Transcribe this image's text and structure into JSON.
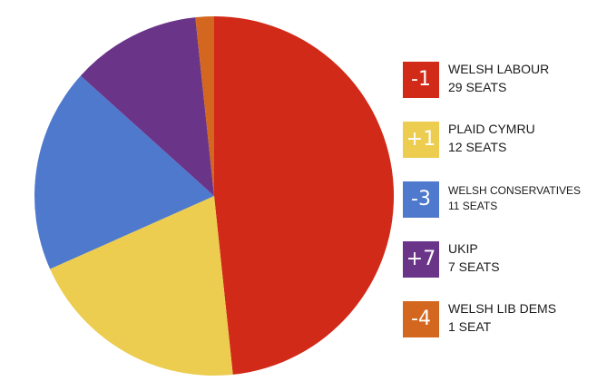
{
  "chart_data": {
    "type": "pie",
    "slices": [
      {
        "label": "WELSH LABOUR",
        "value": 29,
        "seats_text": "29 SEATS",
        "change": "-1",
        "color": "#d12a18"
      },
      {
        "label": "PLAID CYMRU",
        "value": 12,
        "seats_text": "12 SEATS",
        "change": "+1",
        "color": "#eccd4f"
      },
      {
        "label": "WELSH CONSERVATIVES",
        "value": 11,
        "seats_text": "11 SEATS",
        "change": "-3",
        "color": "#4f79cc"
      },
      {
        "label": "UKIP",
        "value": 7,
        "seats_text": "7 SEATS",
        "change": "+7",
        "color": "#6a3489"
      },
      {
        "label": "WELSH LIB DEMS",
        "value": 1,
        "seats_text": "1 SEAT",
        "change": "-4",
        "color": "#d4671f"
      }
    ],
    "legend_position": "right"
  }
}
